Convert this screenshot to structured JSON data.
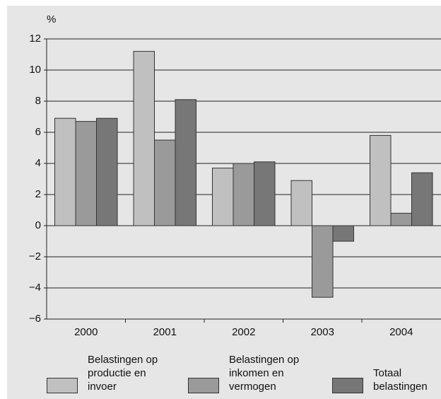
{
  "chart_data": {
    "type": "bar",
    "y_label": "%",
    "categories": [
      "2000",
      "2001",
      "2002",
      "2003",
      "2004"
    ],
    "series": [
      {
        "name": "Belastingen op productie en invoer",
        "color": "#c0c0c0",
        "values": [
          6.9,
          11.2,
          3.7,
          2.9,
          5.8
        ]
      },
      {
        "name": "Belastingen op inkomen en vermogen",
        "color": "#9a9a9a",
        "values": [
          6.7,
          5.5,
          4.0,
          -4.6,
          0.8
        ]
      },
      {
        "name": "Totaal belastingen",
        "color": "#777777",
        "values": [
          6.9,
          8.1,
          4.1,
          -1.0,
          3.4
        ]
      }
    ],
    "ylim": [
      -6,
      12
    ],
    "yticks": [
      {
        "value": -6,
        "label": "−6"
      },
      {
        "value": -4,
        "label": "−4"
      },
      {
        "value": -2,
        "label": "−2"
      },
      0,
      2,
      4,
      6,
      8,
      10,
      12
    ],
    "grid": true
  }
}
